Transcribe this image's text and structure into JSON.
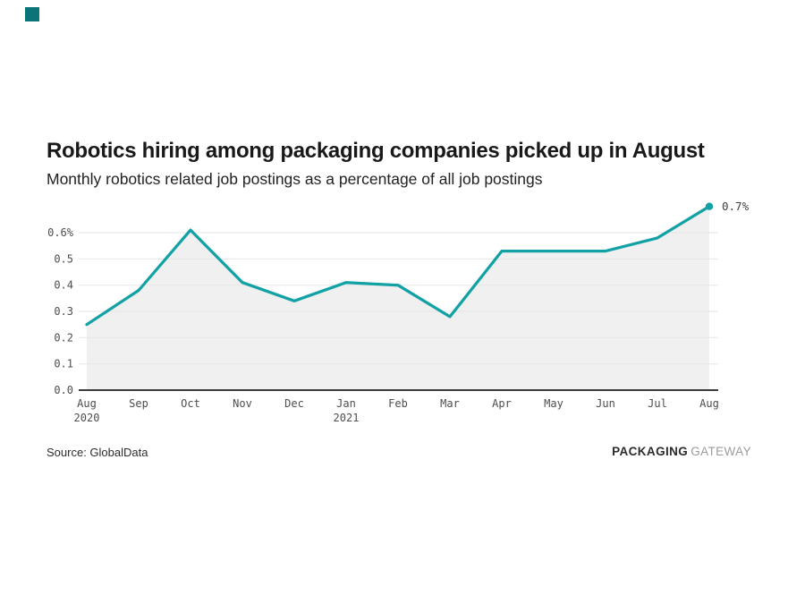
{
  "brand": {
    "square_color": "#0c7478"
  },
  "header": {
    "title": "Robotics hiring among packaging companies picked up in August",
    "subtitle": "Monthly robotics related job postings as a percentage of all job postings"
  },
  "chart_data": {
    "type": "area",
    "title": "Robotics hiring among packaging companies picked up in August",
    "subtitle": "Monthly robotics related job postings as a percentage of all job postings",
    "x_ticks": [
      {
        "month": "Aug",
        "year": "2020"
      },
      {
        "month": "Sep"
      },
      {
        "month": "Oct"
      },
      {
        "month": "Nov"
      },
      {
        "month": "Dec"
      },
      {
        "month": "Jan",
        "year": "2021"
      },
      {
        "month": "Feb"
      },
      {
        "month": "Mar"
      },
      {
        "month": "Apr"
      },
      {
        "month": "May"
      },
      {
        "month": "Jun"
      },
      {
        "month": "Jul"
      },
      {
        "month": "Aug"
      }
    ],
    "values": [
      0.25,
      0.38,
      0.61,
      0.41,
      0.34,
      0.41,
      0.4,
      0.28,
      0.53,
      0.53,
      0.53,
      0.58,
      0.7
    ],
    "unit": "%",
    "end_label": "0.7%",
    "y_ticks": [
      {
        "v": 0.6,
        "label": "0.6%"
      },
      {
        "v": 0.5,
        "label": "0.5"
      },
      {
        "v": 0.4,
        "label": "0.4"
      },
      {
        "v": 0.3,
        "label": "0.3"
      },
      {
        "v": 0.2,
        "label": "0.2"
      },
      {
        "v": 0.1,
        "label": "0.1"
      },
      {
        "v": 0.0,
        "label": "0.0"
      }
    ],
    "ylim": [
      0,
      0.7
    ],
    "grid": true,
    "legend": "none",
    "line_color": "#12a1a5",
    "fill_color": "#f0f0f0",
    "grid_color": "#e5e5e5",
    "axis_color": "#3b3b3b",
    "label_color": "#4d4d4d"
  },
  "footer": {
    "source": "Source: GlobalData",
    "logo_bold": "PACKAGING",
    "logo_light": "GATEWAY"
  }
}
